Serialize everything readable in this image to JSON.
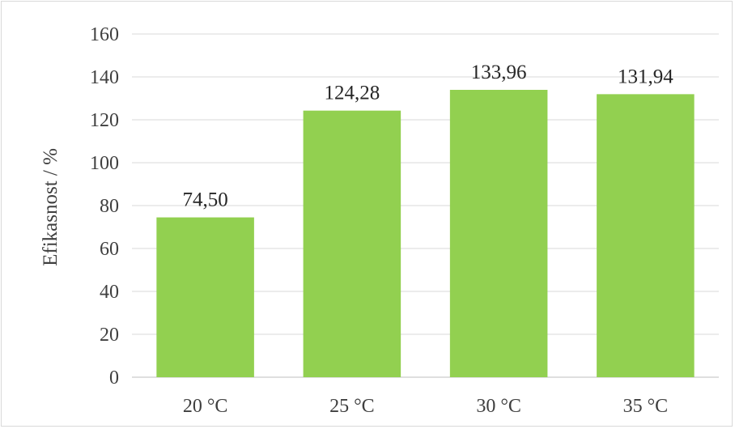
{
  "chart_data": {
    "type": "bar",
    "title": "",
    "xlabel": "",
    "ylabel": "Efikasnost / %",
    "categories": [
      "20 °C",
      "25 °C",
      "30 °C",
      "35 °C"
    ],
    "values": [
      74.5,
      124.28,
      133.96,
      131.94
    ],
    "value_labels": [
      "74,50",
      "124,28",
      "133,96",
      "131,94"
    ],
    "ylim": [
      0,
      160
    ],
    "yticks": [
      0,
      20,
      40,
      60,
      80,
      100,
      120,
      140,
      160
    ],
    "grid": true,
    "legend": "none",
    "bar_color": "#92d050"
  }
}
